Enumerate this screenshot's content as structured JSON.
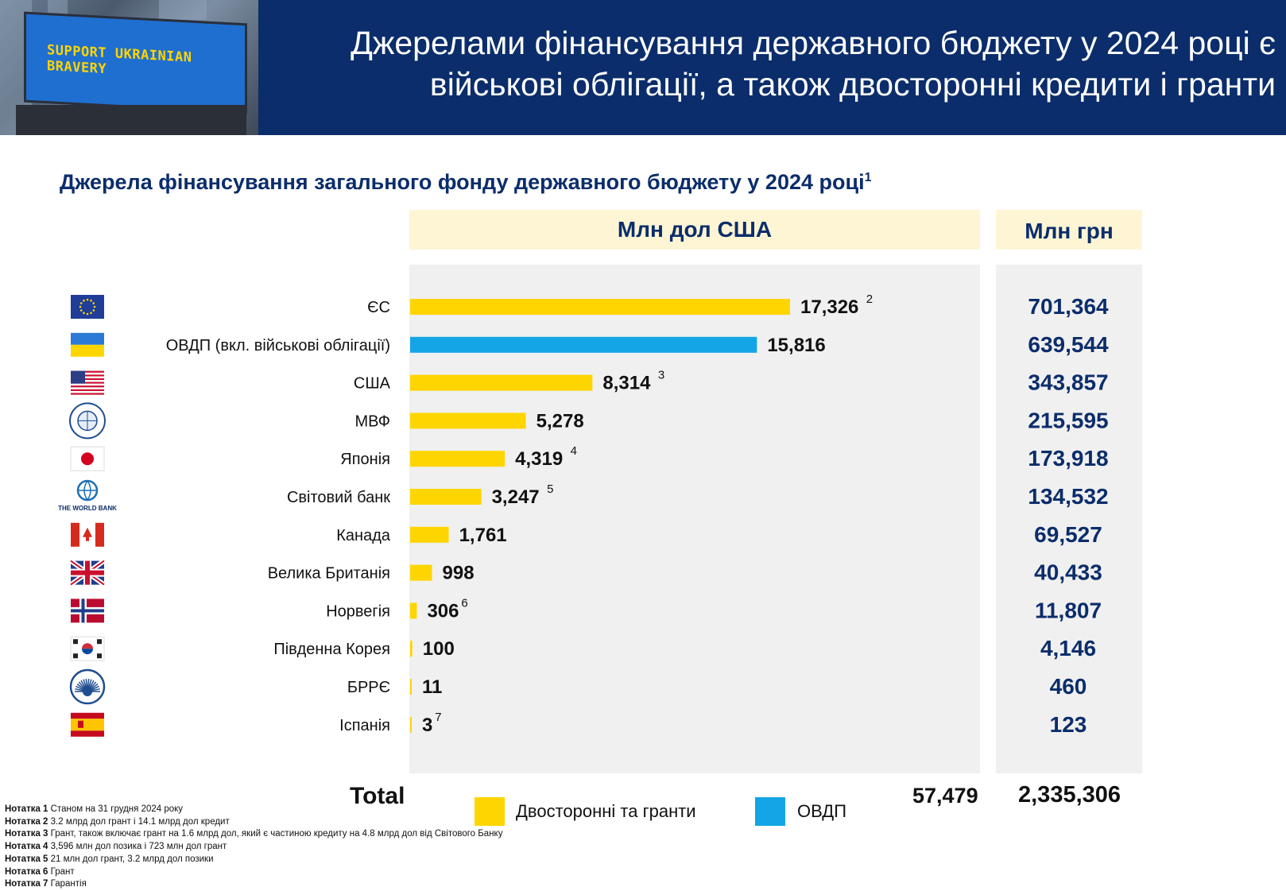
{
  "header": {
    "title_line1": "Джерелами фінансування державного бюджету у 2024 році є",
    "title_line2": "військові облігації, а також двосторонні кредити і гранти",
    "billboard_text": "SUPPORT UKRAINIAN BRAVERY"
  },
  "subtitle": "Джерела фінансування загального фонду державного бюджету у 2024 році",
  "subtitle_note": "1",
  "column_headers": {
    "usd": "Млн дол США",
    "uah": "Млн грн"
  },
  "colors": {
    "bilateral": "#ffd500",
    "ovdp": "#14a5e6",
    "navy": "#0b2d6b",
    "panel": "#f0f0f0",
    "header_band": "#fdf5d4"
  },
  "chart_data": {
    "type": "bar",
    "orientation": "horizontal",
    "categories": [
      "ЄС",
      "ОВДП (вкл. військові облігації)",
      "США",
      "МВФ",
      "Японія",
      "Світовий банк",
      "Канада",
      "Велика Британія",
      "Норвегія",
      "Південна Корея",
      "БРРЄ",
      "Іспанія"
    ],
    "series": [
      {
        "name": "Двосторонні та гранти",
        "color": "#ffd500",
        "values": [
          17326,
          0,
          8314,
          5278,
          4319,
          3247,
          1761,
          998,
          306,
          100,
          11,
          3
        ]
      },
      {
        "name": "ОВДП",
        "color": "#14a5e6",
        "values": [
          0,
          15816,
          0,
          0,
          0,
          0,
          0,
          0,
          0,
          0,
          0,
          0
        ]
      }
    ],
    "value_labels": [
      "17,326",
      "15,816",
      "8,314",
      "5,278",
      "4,319",
      "3,247",
      "1,761",
      "998",
      "306",
      "100",
      "11",
      "3"
    ],
    "note_marks": [
      "2",
      "",
      "3",
      "",
      "4",
      "5",
      "",
      "",
      "6",
      "",
      "",
      "7"
    ],
    "uah_values": [
      "701,364",
      "639,544",
      "343,857",
      "215,595",
      "173,918",
      "134,532",
      "69,527",
      "40,433",
      "11,807",
      "4,146",
      "460",
      "123"
    ],
    "icons": [
      "eu-flag-icon",
      "ukraine-flag-icon",
      "usa-flag-icon",
      "imf-logo-icon",
      "japan-flag-icon",
      "world-bank-logo-icon",
      "canada-flag-icon",
      "uk-flag-icon",
      "norway-flag-icon",
      "south-korea-flag-icon",
      "ebrd-logo-icon",
      "spain-flag-icon"
    ],
    "icon_caption_world_bank": "THE WORLD BANK",
    "xlim": [
      0,
      17326
    ]
  },
  "total": {
    "label": "Total",
    "usd": "57,479",
    "uah": "2,335,306"
  },
  "legend": {
    "bilateral": "Двосторонні та гранти",
    "ovdp": "ОВДП"
  },
  "notes": [
    {
      "label": "Нотатка 1",
      "text": " Станом на 31 грудня 2024 року"
    },
    {
      "label": "Нотатка 2",
      "text": " 3.2 млрд дол грант і 14.1 млрд дол кредит"
    },
    {
      "label": "Нотатка 3",
      "text": " Грант, також включає грант на 1.6 млрд дол, який є частиною кредиту на 4.8 млрд дол від Світового Банку"
    },
    {
      "label": "Нотатка 4",
      "text": " 3,596 млн дол позика і 723 млн дол грант"
    },
    {
      "label": "Нотатка 5",
      "text": " 21 млн дол грант, 3.2 млрд дол позики"
    },
    {
      "label": "Нотатка 6",
      "text": " Грант"
    },
    {
      "label": "Нотатка 7",
      "text": " Гарантія"
    }
  ]
}
